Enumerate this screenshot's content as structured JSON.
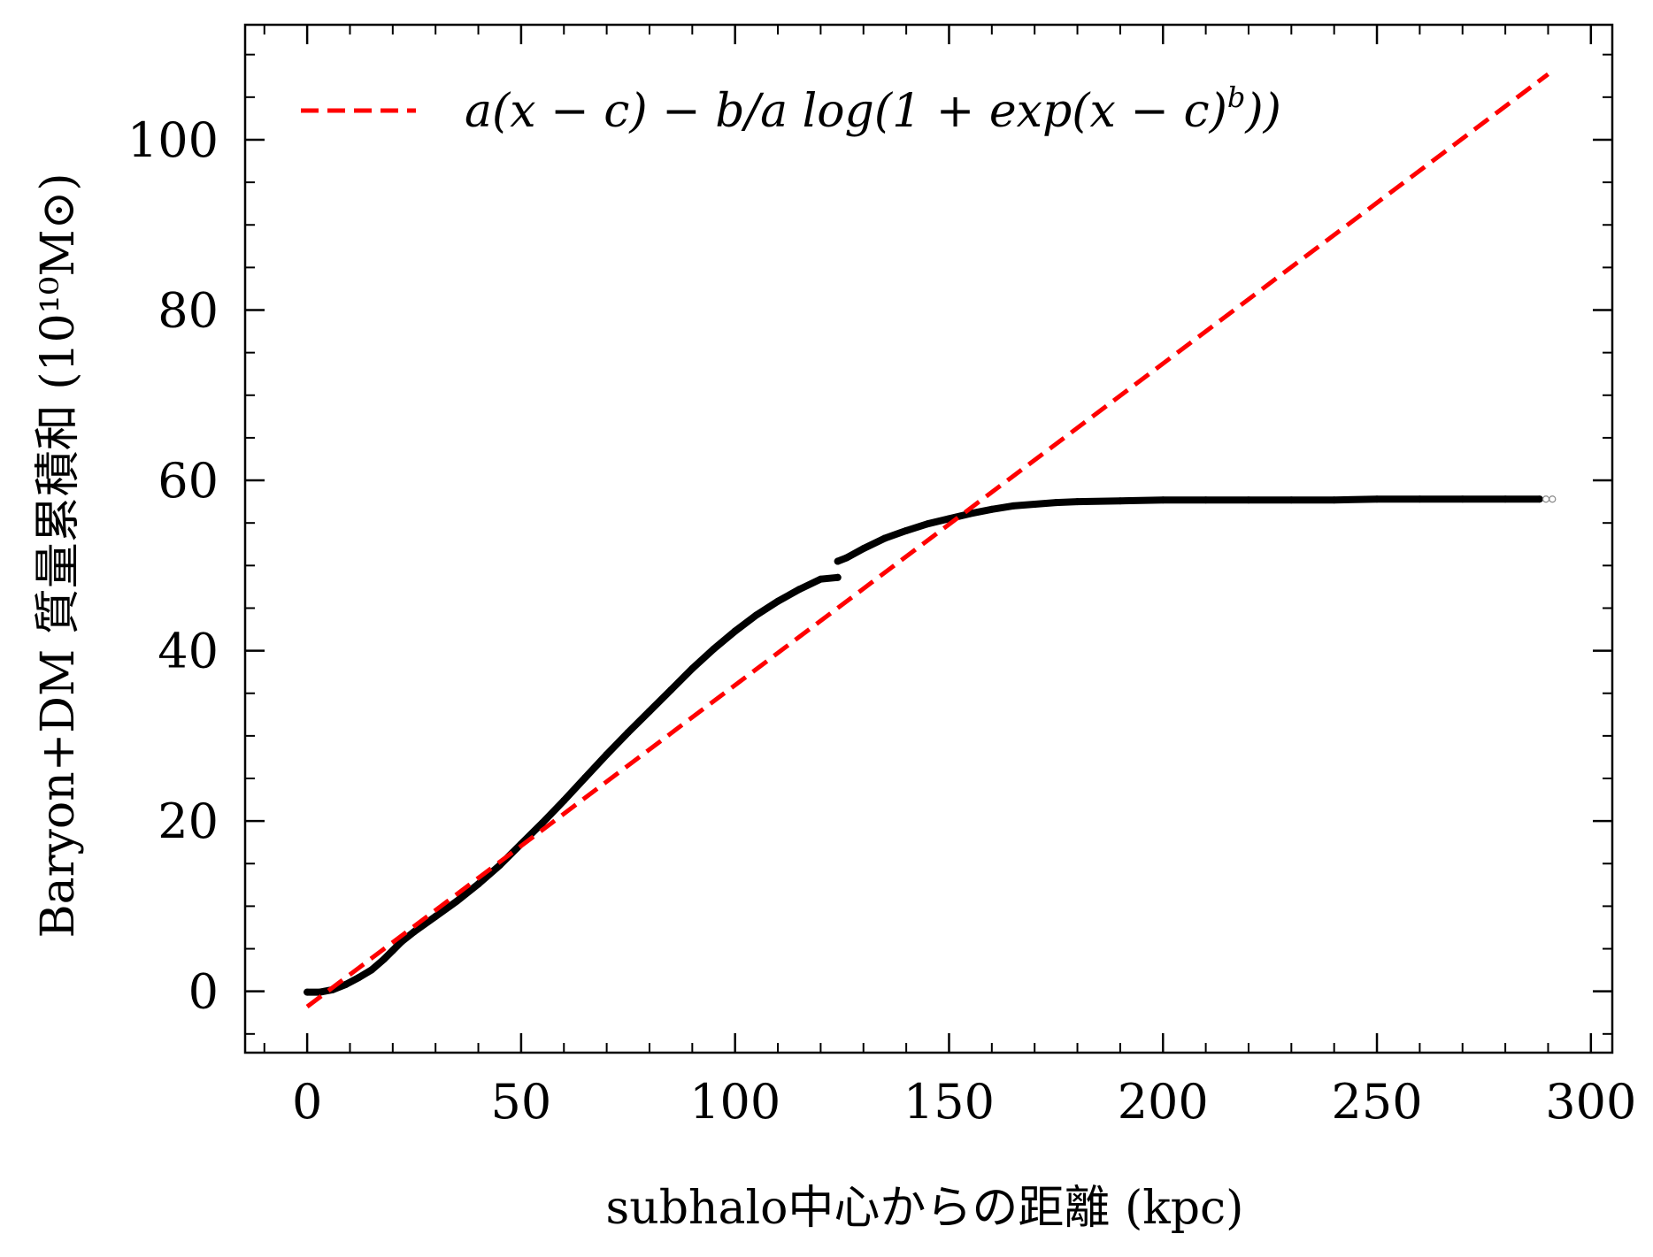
{
  "chart_data": {
    "type": "line",
    "xlabel": "subhalo中心からの距離 (kpc)",
    "ylabel": "Baryon+DM 質量累積和 (10¹⁰M⊙)",
    "xlim": [
      -14.5,
      305
    ],
    "ylim": [
      -7.2,
      113.5
    ],
    "x_ticks": [
      0,
      50,
      100,
      150,
      200,
      250,
      300
    ],
    "y_ticks": [
      0,
      20,
      40,
      60,
      80,
      100
    ],
    "x_tick_labels": [
      "0",
      "50",
      "100",
      "150",
      "200",
      "250",
      "300"
    ],
    "y_tick_labels": [
      "0",
      "20",
      "40",
      "60",
      "80",
      "100"
    ],
    "x_minor_step": 10,
    "y_minor_step": 5,
    "legend_position": "top-left",
    "colors": {
      "data": "#000000",
      "fit": "#ff0000"
    },
    "series": [
      {
        "style": "points",
        "segments": [
          {
            "x": [
              0,
              3,
              6,
              9,
              12,
              15,
              18,
              20,
              22,
              25,
              30,
              35,
              40,
              45,
              50,
              55,
              60,
              65,
              70,
              75,
              80,
              85,
              90,
              95,
              100,
              105,
              110,
              115,
              120,
              124
            ],
            "y": [
              -0.1,
              -0.1,
              0.2,
              0.8,
              1.6,
              2.5,
              3.8,
              4.8,
              5.8,
              7.0,
              8.8,
              10.6,
              12.6,
              14.8,
              17.3,
              19.8,
              22.4,
              25.1,
              27.8,
              30.4,
              32.9,
              35.4,
              37.9,
              40.2,
              42.3,
              44.2,
              45.8,
              47.2,
              48.4,
              48.6
            ]
          },
          {
            "x": [
              124,
              126,
              130,
              135,
              140,
              145,
              150,
              155,
              160,
              165,
              170,
              175,
              180,
              190,
              200,
              210,
              220,
              230,
              240,
              250,
              260,
              270,
              280,
              288
            ],
            "y": [
              50.5,
              50.9,
              52.0,
              53.2,
              54.1,
              54.9,
              55.5,
              56.1,
              56.6,
              57.0,
              57.2,
              57.4,
              57.5,
              57.6,
              57.7,
              57.7,
              57.7,
              57.7,
              57.7,
              57.8,
              57.8,
              57.8,
              57.8,
              57.8
            ]
          }
        ]
      },
      {
        "name": "a(x − c) − b/a log(1 + exp(x − c)^b))",
        "style": "dashed",
        "x": [
          0,
          290
        ],
        "y": [
          -1.8,
          107.7
        ]
      }
    ]
  },
  "legend": {
    "fit_label": "a(x − c) − b/a log(1 + exp(x − c)",
    "fit_label_sup": "b",
    "fit_label_end": "))"
  }
}
